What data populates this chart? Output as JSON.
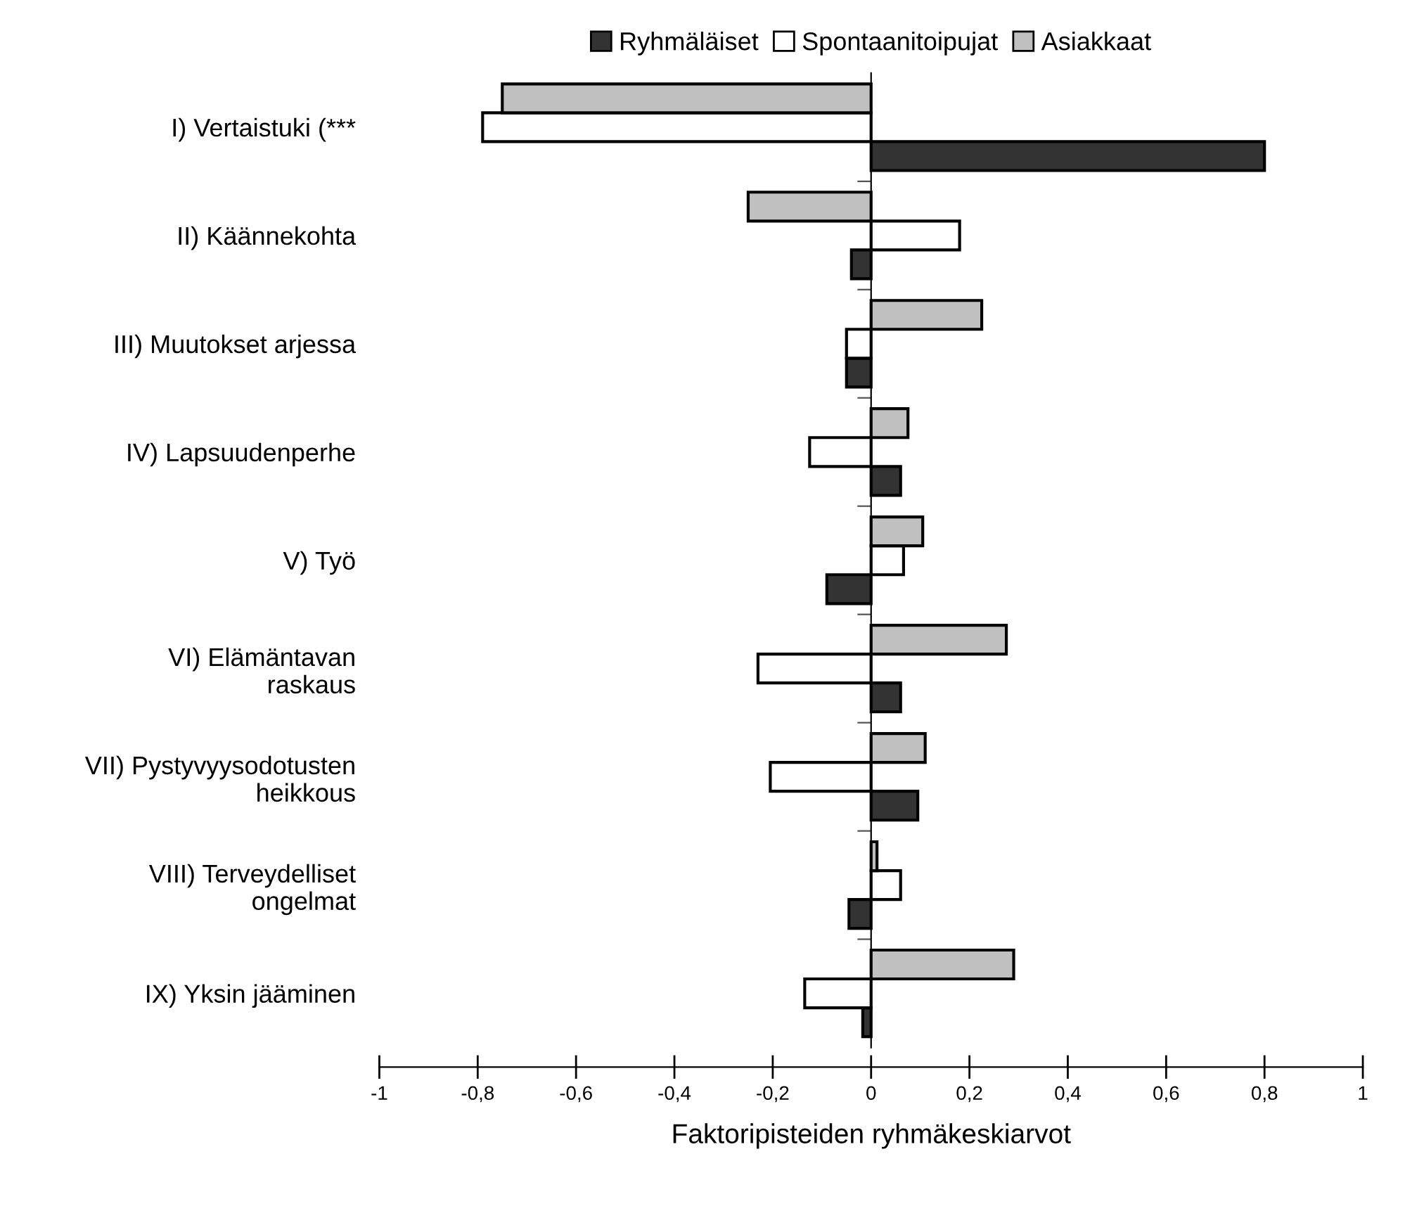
{
  "chart_data": {
    "type": "bar",
    "orientation": "horizontal",
    "categories": [
      "I) Vertaistuki (***",
      "II) Käännekohta",
      "III) Muutokset arjessa",
      "IV) Lapsuudenperhe",
      "V) Työ",
      "VI) Elämäntavan\nraskaus",
      "VII) Pystyvyysodotusten\nheikkous",
      "VIII) Terveydelliset\nongelmat",
      "IX) Yksin jääminen"
    ],
    "series": [
      {
        "name": "Ryhmäläiset",
        "color": "#333333",
        "values": [
          0.8,
          -0.04,
          -0.05,
          0.06,
          -0.09,
          0.06,
          0.095,
          -0.045,
          -0.017
        ]
      },
      {
        "name": "Spontaanitoipujat",
        "color": "#ffffff",
        "values": [
          -0.79,
          0.18,
          -0.05,
          -0.125,
          0.066,
          -0.23,
          -0.205,
          0.06,
          -0.135
        ]
      },
      {
        "name": "Asiakkaat",
        "color": "#c0c0c0",
        "values": [
          -0.75,
          -0.25,
          0.225,
          0.075,
          0.105,
          0.275,
          0.11,
          0.012,
          0.29
        ]
      }
    ],
    "xlabel": "Faktoripisteiden ryhmäkeskiarvot",
    "xlim": [
      -1,
      1
    ],
    "xticks": [
      -1,
      {
        "value": -0.8,
        "label": "-0,8"
      },
      {
        "value": -0.6,
        "label": "-0,6"
      },
      {
        "value": -0.4,
        "label": "-0,4"
      },
      {
        "value": -0.2,
        "label": "-0,2"
      },
      0,
      {
        "value": 0.2,
        "label": "0,2"
      },
      {
        "value": 0.4,
        "label": "0,4"
      },
      {
        "value": 0.6,
        "label": "0,6"
      },
      {
        "value": 0.8,
        "label": "0,8"
      },
      1
    ],
    "legend": "top"
  }
}
